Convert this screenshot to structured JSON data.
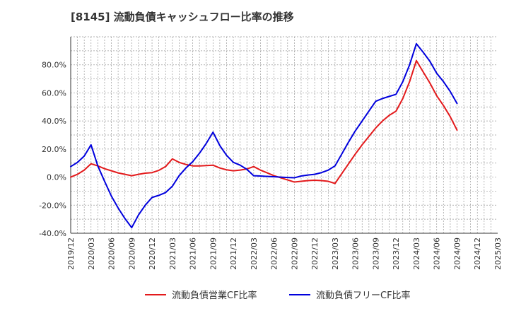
{
  "chart_data": {
    "type": "line",
    "title": "[8145]  流動負債キャッシュフロー比率の推移",
    "xlabel": "",
    "ylabel": "",
    "ylim": [
      -40,
      100
    ],
    "y_ticks": [
      {
        "value": 80,
        "label": "80.0%"
      },
      {
        "value": 60,
        "label": "60.0%"
      },
      {
        "value": 40,
        "label": "40.0%"
      },
      {
        "value": 20,
        "label": "20.0%"
      },
      {
        "value": 0,
        "label": "0.0%"
      },
      {
        "value": -20,
        "label": "-20.0%"
      },
      {
        "value": -40,
        "label": "-40.0%"
      }
    ],
    "x_range": [
      "2019/12",
      "2025/03"
    ],
    "x_ticks": [
      "2019/12",
      "2020/03",
      "2020/06",
      "2020/09",
      "2020/12",
      "2021/03",
      "2021/06",
      "2021/09",
      "2021/12",
      "2022/03",
      "2022/06",
      "2022/09",
      "2022/12",
      "2023/03",
      "2023/06",
      "2023/09",
      "2023/12",
      "2024/03",
      "2024/06",
      "2024/09",
      "2024/12",
      "2025/03"
    ],
    "grid": true,
    "legend_position": "bottom",
    "series": [
      {
        "name": "流動負債営業CF比率",
        "color": "#e31a1c",
        "points": [
          [
            "2019/12",
            0
          ],
          [
            "2020/01",
            2
          ],
          [
            "2020/02",
            5
          ],
          [
            "2020/03",
            9.5
          ],
          [
            "2020/04",
            8
          ],
          [
            "2020/05",
            6
          ],
          [
            "2020/06",
            4.5
          ],
          [
            "2020/07",
            3
          ],
          [
            "2020/08",
            2
          ],
          [
            "2020/09",
            1
          ],
          [
            "2020/10",
            2
          ],
          [
            "2020/11",
            2.8
          ],
          [
            "2020/12",
            3.2
          ],
          [
            "2021/01",
            4.8
          ],
          [
            "2021/02",
            7.5
          ],
          [
            "2021/03",
            13
          ],
          [
            "2021/04",
            10.5
          ],
          [
            "2021/05",
            9
          ],
          [
            "2021/06",
            8
          ],
          [
            "2021/07",
            8
          ],
          [
            "2021/08",
            8.2
          ],
          [
            "2021/09",
            8.5
          ],
          [
            "2021/10",
            6.5
          ],
          [
            "2021/11",
            5.2
          ],
          [
            "2021/12",
            4.5
          ],
          [
            "2022/01",
            5
          ],
          [
            "2022/02",
            5.8
          ],
          [
            "2022/03",
            7.5
          ],
          [
            "2022/04",
            5
          ],
          [
            "2022/05",
            3
          ],
          [
            "2022/06",
            1
          ],
          [
            "2022/07",
            -0.5
          ],
          [
            "2022/08",
            -2
          ],
          [
            "2022/09",
            -3.5
          ],
          [
            "2022/10",
            -3
          ],
          [
            "2022/11",
            -2.5
          ],
          [
            "2022/12",
            -2.2
          ],
          [
            "2023/01",
            -2.5
          ],
          [
            "2023/02",
            -3
          ],
          [
            "2023/03",
            -4.5
          ],
          [
            "2023/04",
            2.5
          ],
          [
            "2023/05",
            9.5
          ],
          [
            "2023/06",
            16.5
          ],
          [
            "2023/07",
            23
          ],
          [
            "2023/08",
            29
          ],
          [
            "2023/09",
            35
          ],
          [
            "2023/10",
            40
          ],
          [
            "2023/11",
            44
          ],
          [
            "2023/12",
            47
          ],
          [
            "2024/01",
            56
          ],
          [
            "2024/02",
            68
          ],
          [
            "2024/03",
            83
          ],
          [
            "2024/04",
            75
          ],
          [
            "2024/05",
            67
          ],
          [
            "2024/06",
            58
          ],
          [
            "2024/07",
            51
          ],
          [
            "2024/08",
            43
          ],
          [
            "2024/09",
            33.5
          ]
        ]
      },
      {
        "name": "流動負債フリーCF比率",
        "color": "#0000dd",
        "points": [
          [
            "2019/12",
            7.5
          ],
          [
            "2020/01",
            10.5
          ],
          [
            "2020/02",
            15
          ],
          [
            "2020/03",
            23
          ],
          [
            "2020/04",
            8
          ],
          [
            "2020/05",
            -3
          ],
          [
            "2020/06",
            -13.5
          ],
          [
            "2020/07",
            -22
          ],
          [
            "2020/08",
            -29.5
          ],
          [
            "2020/09",
            -36
          ],
          [
            "2020/10",
            -27
          ],
          [
            "2020/11",
            -20
          ],
          [
            "2020/12",
            -14.5
          ],
          [
            "2021/01",
            -13
          ],
          [
            "2021/02",
            -11
          ],
          [
            "2021/03",
            -6.5
          ],
          [
            "2021/04",
            1
          ],
          [
            "2021/05",
            6.5
          ],
          [
            "2021/06",
            11
          ],
          [
            "2021/07",
            17
          ],
          [
            "2021/08",
            24
          ],
          [
            "2021/09",
            32
          ],
          [
            "2021/10",
            22.5
          ],
          [
            "2021/11",
            15.5
          ],
          [
            "2021/12",
            10.5
          ],
          [
            "2022/01",
            8.5
          ],
          [
            "2022/02",
            5.5
          ],
          [
            "2022/03",
            1
          ],
          [
            "2022/04",
            0.8
          ],
          [
            "2022/05",
            0.5
          ],
          [
            "2022/06",
            0.3
          ],
          [
            "2022/07",
            0
          ],
          [
            "2022/08",
            -0.3
          ],
          [
            "2022/09",
            -0.5
          ],
          [
            "2022/10",
            0.8
          ],
          [
            "2022/11",
            1.5
          ],
          [
            "2022/12",
            2
          ],
          [
            "2023/01",
            3.2
          ],
          [
            "2023/02",
            5
          ],
          [
            "2023/03",
            8
          ],
          [
            "2023/04",
            16.5
          ],
          [
            "2023/05",
            25
          ],
          [
            "2023/06",
            33
          ],
          [
            "2023/07",
            40
          ],
          [
            "2023/08",
            47
          ],
          [
            "2023/09",
            54
          ],
          [
            "2023/10",
            56
          ],
          [
            "2023/11",
            57.5
          ],
          [
            "2023/12",
            59
          ],
          [
            "2024/01",
            68
          ],
          [
            "2024/02",
            80
          ],
          [
            "2024/03",
            95
          ],
          [
            "2024/04",
            89
          ],
          [
            "2024/05",
            82.5
          ],
          [
            "2024/06",
            74
          ],
          [
            "2024/07",
            68
          ],
          [
            "2024/08",
            61
          ],
          [
            "2024/09",
            52.5
          ]
        ]
      }
    ]
  }
}
